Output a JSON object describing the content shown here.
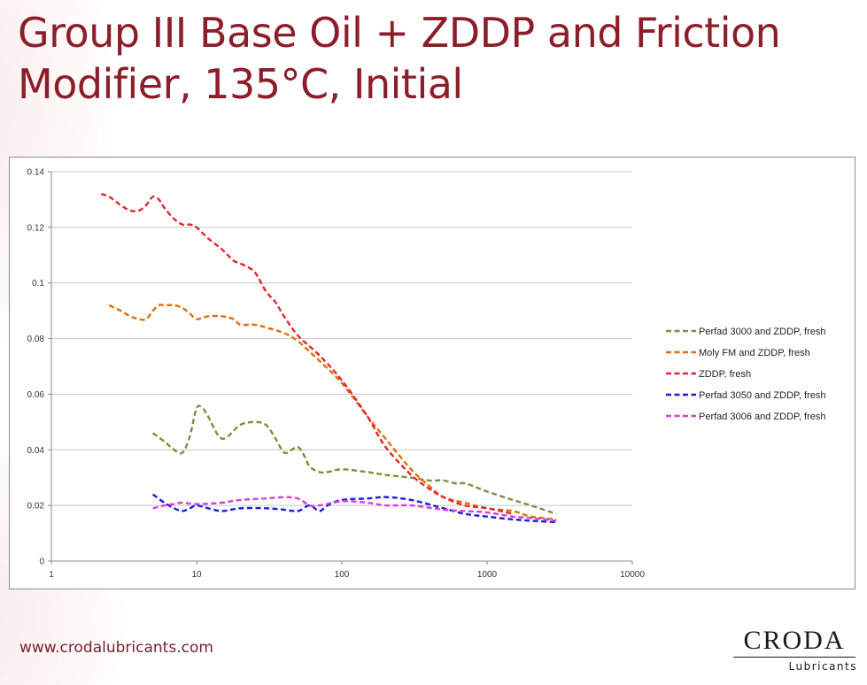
{
  "slide": {
    "title_line1": "Group III Base Oil + ZDDP and Friction",
    "title_line2": "Modifier, 135°C, Initial",
    "footer_url": "www.crodalubricants.com",
    "logo_name": "CRODA",
    "logo_subtitle": "Lubricants",
    "accent_color": "#8c1e2a"
  },
  "chart_data": {
    "type": "line",
    "title": "",
    "xlabel": "",
    "ylabel": "",
    "x_scale": "log",
    "xlim": [
      1,
      10000
    ],
    "ylim": [
      0,
      0.14
    ],
    "x_ticks": [
      1,
      10,
      100,
      1000,
      10000
    ],
    "x_tick_labels": [
      "1",
      "10",
      "100",
      "1000",
      "10000"
    ],
    "y_ticks": [
      0,
      0.02,
      0.04,
      0.06,
      0.08,
      0.1,
      0.12,
      0.14
    ],
    "y_tick_labels": [
      "0",
      "0.02",
      "0.04",
      "0.06",
      "0.08",
      "0.1",
      "0.12",
      "0.14"
    ],
    "grid": "horizontal",
    "legend_position": "right",
    "line_style": "dashed",
    "series": [
      {
        "name": "Perfad 3000 and ZDDP, fresh",
        "color": "#77933c",
        "x": [
          5,
          6,
          7,
          8,
          9,
          10,
          11,
          12,
          15,
          20,
          25,
          30,
          35,
          40,
          45,
          50,
          55,
          60,
          70,
          80,
          100,
          150,
          200,
          300,
          400,
          500,
          600,
          700,
          800,
          1000,
          1500,
          2000,
          3000
        ],
        "y": [
          0.046,
          0.043,
          0.04,
          0.039,
          0.045,
          0.055,
          0.055,
          0.052,
          0.044,
          0.049,
          0.05,
          0.049,
          0.044,
          0.039,
          0.04,
          0.041,
          0.038,
          0.034,
          0.032,
          0.032,
          0.033,
          0.032,
          0.031,
          0.03,
          0.029,
          0.029,
          0.028,
          0.028,
          0.027,
          0.025,
          0.022,
          0.02,
          0.017
        ]
      },
      {
        "name": "Moly FM and ZDDP, fresh",
        "color": "#e46c0a",
        "x": [
          2.5,
          3,
          3.5,
          4,
          4.5,
          5,
          5.5,
          6,
          7,
          8,
          9,
          10,
          12,
          15,
          18,
          20,
          25,
          30,
          40,
          50,
          70,
          100,
          150,
          200,
          300,
          400,
          500,
          700,
          1000,
          1500,
          2000,
          3000
        ],
        "y": [
          0.092,
          0.09,
          0.088,
          0.087,
          0.087,
          0.09,
          0.092,
          0.092,
          0.092,
          0.091,
          0.089,
          0.087,
          0.088,
          0.088,
          0.087,
          0.085,
          0.085,
          0.084,
          0.082,
          0.079,
          0.072,
          0.064,
          0.052,
          0.044,
          0.033,
          0.027,
          0.023,
          0.021,
          0.019,
          0.018,
          0.016,
          0.015
        ]
      },
      {
        "name": "ZDDP, fresh",
        "color": "#e3262d",
        "x": [
          2.2,
          2.5,
          3,
          3.5,
          4,
          4.5,
          5,
          5.5,
          6,
          7,
          8,
          9,
          10,
          12,
          15,
          18,
          20,
          25,
          30,
          35,
          40,
          50,
          70,
          100,
          150,
          200,
          300,
          400,
          500,
          700,
          1000,
          1500
        ],
        "y": [
          0.132,
          0.131,
          0.128,
          0.126,
          0.126,
          0.128,
          0.131,
          0.13,
          0.127,
          0.123,
          0.121,
          0.121,
          0.12,
          0.116,
          0.112,
          0.108,
          0.107,
          0.104,
          0.097,
          0.093,
          0.088,
          0.081,
          0.074,
          0.065,
          0.052,
          0.041,
          0.031,
          0.026,
          0.023,
          0.02,
          0.019,
          0.017
        ]
      },
      {
        "name": "Perfad 3050 and ZDDP, fresh",
        "color": "#1b1be6",
        "x": [
          5,
          6,
          7,
          8,
          9,
          10,
          12,
          15,
          20,
          30,
          40,
          50,
          60,
          70,
          80,
          100,
          150,
          200,
          300,
          500,
          700,
          1000,
          1500,
          2000,
          3000
        ],
        "y": [
          0.024,
          0.021,
          0.019,
          0.018,
          0.019,
          0.02,
          0.019,
          0.018,
          0.019,
          0.019,
          0.0185,
          0.018,
          0.02,
          0.018,
          0.02,
          0.022,
          0.0225,
          0.023,
          0.022,
          0.019,
          0.017,
          0.016,
          0.015,
          0.0145,
          0.014
        ]
      },
      {
        "name": "Perfad 3006 and ZDDP, fresh",
        "color": "#d63fd6",
        "x": [
          5,
          6,
          7,
          8,
          10,
          15,
          20,
          30,
          40,
          50,
          60,
          70,
          100,
          150,
          200,
          300,
          500,
          700,
          1000,
          1500,
          2000,
          3000
        ],
        "y": [
          0.019,
          0.02,
          0.0205,
          0.021,
          0.0205,
          0.021,
          0.022,
          0.0225,
          0.023,
          0.0225,
          0.02,
          0.02,
          0.0215,
          0.021,
          0.02,
          0.02,
          0.0185,
          0.018,
          0.0175,
          0.016,
          0.0155,
          0.0145
        ]
      }
    ]
  }
}
